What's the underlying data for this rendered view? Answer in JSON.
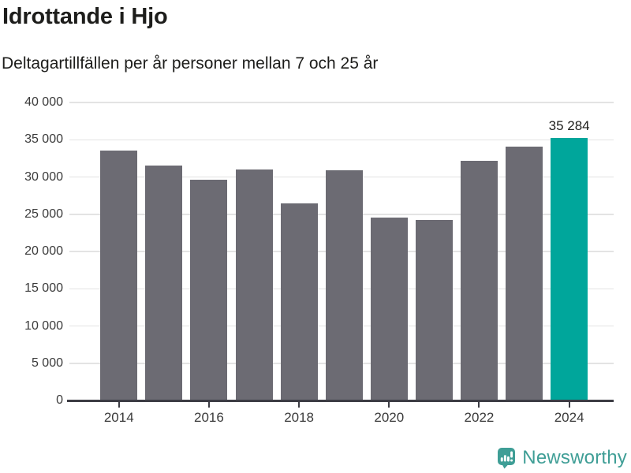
{
  "header": {
    "title": "Idrottande i Hjo",
    "subtitle": "Deltagartillfällen per år personer mellan 7 och 25 år"
  },
  "chart_data": {
    "type": "bar",
    "title": "Idrottande i Hjo",
    "subtitle": "Deltagartillfällen per år personer mellan 7 och 25 år",
    "categories": [
      "2014",
      "2015",
      "2016",
      "2017",
      "2018",
      "2019",
      "2020",
      "2021",
      "2022",
      "2023",
      "2024"
    ],
    "values": [
      33500,
      31500,
      29600,
      31000,
      26500,
      30900,
      24600,
      24200,
      32200,
      34100,
      35284
    ],
    "highlight_index": 10,
    "value_label": "35 284",
    "value_label_index": 10,
    "xlabel": "",
    "ylabel": "",
    "ylim": [
      0,
      40000
    ],
    "ytick_step": 5000,
    "ytick_labels": [
      "0",
      "5 000",
      "10 000",
      "15 000",
      "20 000",
      "25 000",
      "30 000",
      "35 000",
      "40 000"
    ],
    "xtick_labels": [
      "2014",
      "2016",
      "2018",
      "2020",
      "2022",
      "2024"
    ],
    "xtick_every": 2,
    "grid": true,
    "legend": false,
    "bar_color": "#6c6b73",
    "highlight_color": "#00a69b",
    "gridline_color": "#e3e3e3",
    "axis_color": "#3c3c44"
  },
  "footer": {
    "brand": "Newsworthy",
    "logo_icon": "newsworthy-speech-bubble-chart-icon",
    "brand_color": "#3f9e96"
  }
}
